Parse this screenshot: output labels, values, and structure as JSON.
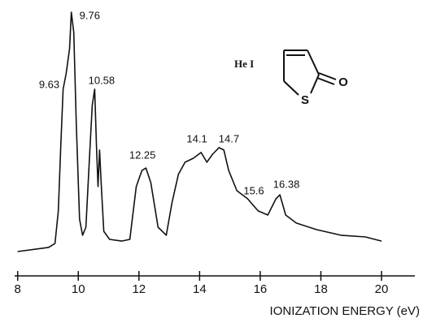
{
  "chart_data": {
    "type": "line",
    "x_label": "IONIZATION ENERGY (eV)",
    "xlim": [
      7.9,
      21.1
    ],
    "xticks": [
      8,
      10,
      12,
      14,
      16,
      18,
      20
    ],
    "ylim": [
      0,
      100
    ],
    "color": "#111111",
    "x": [
      8.0,
      9.02,
      9.23,
      9.34,
      9.42,
      9.5,
      9.6,
      9.71,
      9.77,
      9.85,
      9.93,
      10.04,
      10.14,
      10.25,
      10.36,
      10.46,
      10.54,
      10.6,
      10.65,
      10.7,
      10.76,
      10.84,
      11.03,
      11.43,
      11.7,
      11.91,
      12.1,
      12.23,
      12.39,
      12.63,
      12.9,
      13.09,
      13.3,
      13.52,
      13.79,
      14.05,
      14.24,
      14.43,
      14.64,
      14.8,
      14.96,
      15.23,
      15.58,
      15.93,
      16.25,
      16.52,
      16.65,
      16.84,
      17.19,
      17.86,
      18.66,
      19.47,
      20.0
    ],
    "values": [
      0,
      1.7,
      3.3,
      16.7,
      43.3,
      66.7,
      73.3,
      83.3,
      98.3,
      90,
      53.3,
      13.3,
      6.7,
      10,
      36.7,
      60,
      66.7,
      43.3,
      26.7,
      41.7,
      26.7,
      8.3,
      5,
      4.3,
      5,
      26.7,
      33.3,
      34.3,
      28.3,
      10,
      6.7,
      20,
      31.7,
      36.7,
      38.3,
      40.7,
      36.7,
      40,
      42.7,
      41.7,
      33.3,
      25,
      21.7,
      16.7,
      15,
      21.7,
      23.3,
      15,
      11.7,
      9,
      6.7,
      6,
      4.3
    ],
    "peak_labels": [
      {
        "value": 9.63,
        "label": "9.63"
      },
      {
        "value": 9.76,
        "label": "9.76"
      },
      {
        "value": 10.58,
        "label": "10.58"
      },
      {
        "value": 12.25,
        "label": "12.25"
      },
      {
        "value": 14.1,
        "label": "14.1"
      },
      {
        "value": 14.7,
        "label": "14.7"
      },
      {
        "value": 15.6,
        "label": "15.6"
      },
      {
        "value": 16.38,
        "label": "16.38"
      }
    ]
  },
  "inset": {
    "source": "He I",
    "atoms": [
      "S",
      "O"
    ]
  }
}
